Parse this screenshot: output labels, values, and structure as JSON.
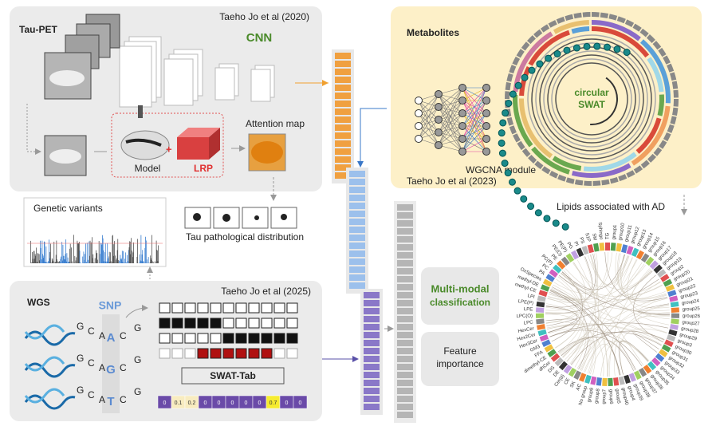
{
  "tau_pet": {
    "title": "Tau-PET",
    "citation": "Taeho Jo et al (2020)",
    "cnn": "CNN",
    "model": "Model",
    "lrp": "LRP",
    "attention": "Attention map",
    "distribution": "Tau pathological distribution"
  },
  "genetic_variants": {
    "title": "Genetic variants"
  },
  "metabolites": {
    "title": "Metabolites",
    "swat_lines": [
      "circular",
      "SWAT"
    ],
    "wgcna": "WGCNA module",
    "citation": "Taeho Jo et al (2023)"
  },
  "wgs": {
    "title": "WGS",
    "snp": "SNP",
    "citation": "Taeho Jo et al (2025)",
    "swat_tab": "SWAT-Tab",
    "sequences": [
      {
        "left": [
          "G",
          "C",
          "A"
        ],
        "snp": "A",
        "right": [
          "C",
          "G"
        ]
      },
      {
        "left": [
          "G",
          "C",
          "A"
        ],
        "snp": "G",
        "right": [
          "C",
          "G"
        ]
      },
      {
        "left": [
          "G",
          "C",
          "A"
        ],
        "snp": "T",
        "right": [
          "C",
          "G"
        ]
      }
    ],
    "scores": [
      0,
      0.1,
      0.2,
      0,
      0,
      0,
      0,
      0,
      0.7,
      0,
      0
    ]
  },
  "classification": {
    "lines": [
      "Multi-modal",
      "classification"
    ]
  },
  "feature_importance": {
    "lines": [
      "Feature",
      "importance"
    ]
  },
  "lipids": {
    "title": "Lipids associated with AD",
    "labels": [
      "TG",
      "group1",
      "group10",
      "group11",
      "group12",
      "group13",
      "group14",
      "group15",
      "group16",
      "group17",
      "group18",
      "group19",
      "group2",
      "group20",
      "group21",
      "group22",
      "group23",
      "group24",
      "group25",
      "group26",
      "group27",
      "group28",
      "group29",
      "group3",
      "group30",
      "group31",
      "group32",
      "group33",
      "group34",
      "group35",
      "group36",
      "group37",
      "group38",
      "group39",
      "group4",
      "group40",
      "group5",
      "group6",
      "group7",
      "group8",
      "group9",
      "No group",
      "AC",
      "SK",
      "CE",
      "Cer(d)",
      "DE",
      "DG",
      "dhCer",
      "dimethyl-CE",
      "FFA",
      "GM3",
      "Hex3Cer",
      "Hex2Cer",
      "HexCer",
      "LPC",
      "LPC(O)",
      "LPE",
      "LPE(P)",
      "LPI",
      "methyl-CE",
      "methyl-DE",
      "OxSpecies",
      "PA",
      "PC",
      "PC(P)",
      "PE",
      "PE(O)",
      "PE(P)",
      "PG",
      "PI",
      "PS",
      "S1P",
      "SM",
      "Sphingo"
    ]
  }
}
